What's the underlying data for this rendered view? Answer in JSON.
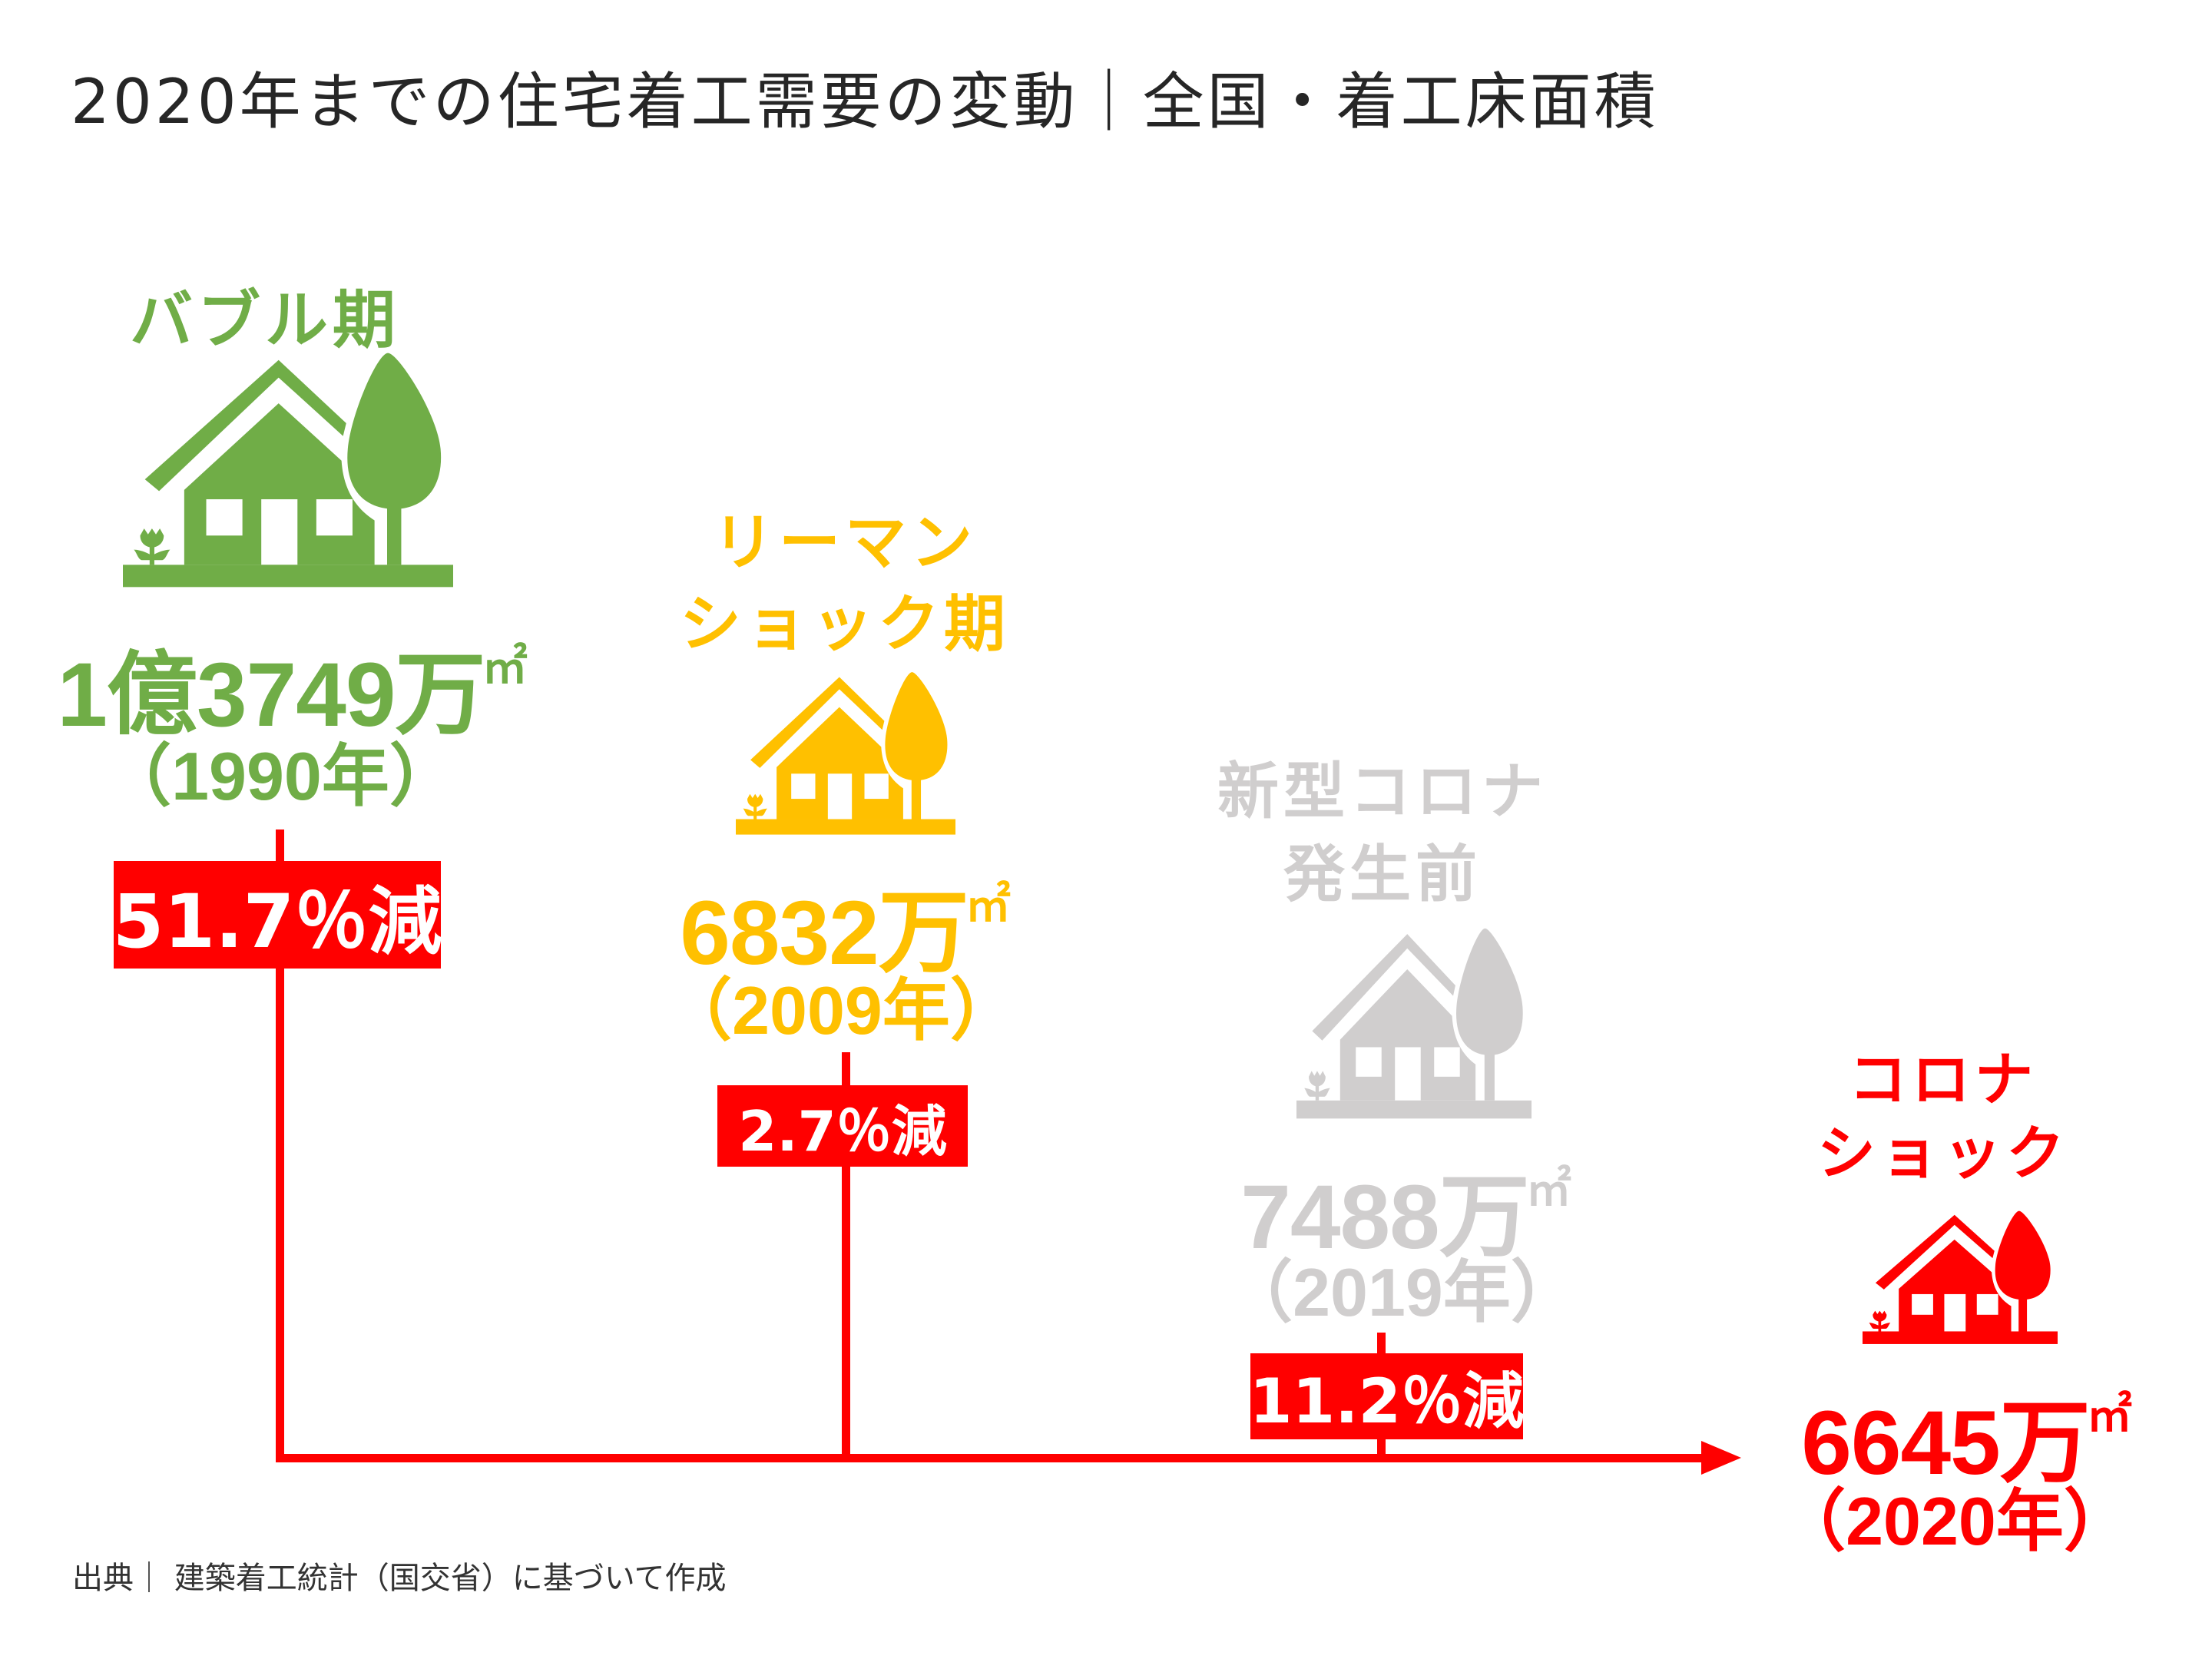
{
  "title": "2020年までの住宅着工需要の変動｜全国・着工床面積",
  "colors": {
    "bubble": "#70AD47",
    "lehman": "#FFC000",
    "pre_corona": "#D0CECE",
    "corona": "#FF0000",
    "badge": "#FF0000",
    "text": "#262626"
  },
  "periods": [
    {
      "label_line1": "バブル期",
      "label_line2": "",
      "icon": "house-tree-icon",
      "value": "1億3749万",
      "unit": "㎡",
      "year": "（1990年）"
    },
    {
      "label_line1": "リーマン",
      "label_line2": "ショック期",
      "icon": "house-tree-icon",
      "value": "6832万",
      "unit": "㎡",
      "year": "（2009年）"
    },
    {
      "label_line1": "新型コロナ",
      "label_line2": "発生前",
      "icon": "house-tree-icon",
      "value": "7488万",
      "unit": "㎡",
      "year": "（2019年）"
    },
    {
      "label_line1": "コロナ",
      "label_line2": "ショック",
      "icon": "house-tree-icon",
      "value": "6645万",
      "unit": "㎡",
      "year": "（2020年）"
    }
  ],
  "decreases": [
    {
      "text": "51.7％減",
      "percent": 51.7
    },
    {
      "text": "2.7％減",
      "percent": 2.7
    },
    {
      "text": "11.2％減",
      "percent": 11.2
    }
  ],
  "footer": "出典｜ 建築着工統計（国交省）に基づいて作成"
}
